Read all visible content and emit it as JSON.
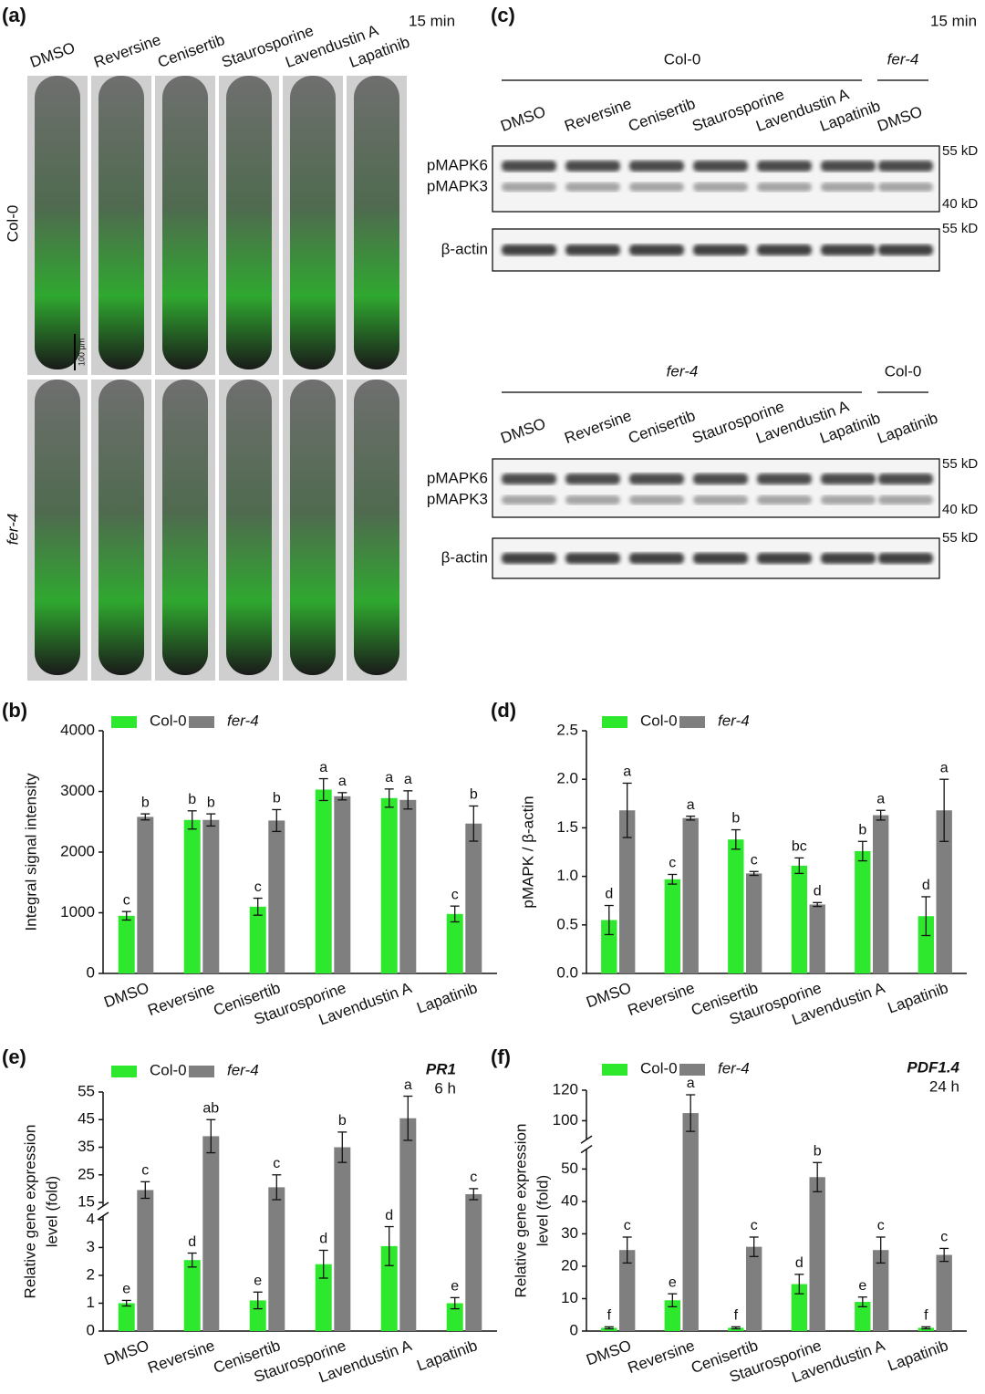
{
  "panel_a": {
    "label": "(a)",
    "time": "15 min",
    "treatments": [
      "DMSO",
      "Reversine",
      "Cenisertib",
      "Staurosporine",
      "Lavendustin A",
      "Lapatinib"
    ],
    "rows": [
      "Col-0",
      "fer-4"
    ],
    "scale_bar": "100 μm"
  },
  "panel_c": {
    "label": "(c)",
    "time": "15 min",
    "blots": [
      {
        "groups": [
          "Col-0",
          "fer-4"
        ],
        "lanes": [
          "DMSO",
          "Reversine",
          "Cenisertib",
          "Staurosporine",
          "Lavendustin A",
          "Lapatinib",
          "DMSO"
        ],
        "bands": [
          "pMAPK6",
          "pMAPK3",
          "β-actin"
        ],
        "markers": [
          "55 kD",
          "40 kD",
          "55 kD"
        ]
      },
      {
        "groups": [
          "fer-4",
          "Col-0"
        ],
        "lanes": [
          "DMSO",
          "Reversine",
          "Cenisertib",
          "Staurosporine",
          "Lavendustin A",
          "Lapatinib",
          "Lapatinib"
        ],
        "bands": [
          "pMAPK6",
          "pMAPK3",
          "β-actin"
        ],
        "markers": [
          "55 kD",
          "40 kD",
          "55 kD"
        ]
      }
    ]
  },
  "chart_data": [
    {
      "type": "bar",
      "panel": "(b)",
      "ylabel": [
        "Integral  signal intensity"
      ],
      "categories": [
        "DMSO",
        "Reversine",
        "Cenisertib",
        "Staurosporine",
        "Lavendustin A",
        "Lapatinib"
      ],
      "ylim": [
        0,
        4000
      ],
      "yticks": [
        0,
        1000,
        2000,
        3000,
        4000
      ],
      "series": [
        {
          "name": "Col-0",
          "color": "#2ee82e",
          "font_style": "normal",
          "values": [
            950,
            2530,
            1100,
            3030,
            2890,
            980
          ],
          "errors": [
            70,
            150,
            140,
            180,
            150,
            130
          ],
          "letters": [
            "c",
            "b",
            "c",
            "a",
            "a",
            "c"
          ]
        },
        {
          "name": "fer-4",
          "color": "#7f7f7f",
          "font_style": "italic",
          "values": [
            2580,
            2530,
            2520,
            2920,
            2860,
            2470
          ],
          "errors": [
            50,
            100,
            180,
            60,
            150,
            290
          ],
          "letters": [
            "b",
            "b",
            "b",
            "a",
            "a",
            "b"
          ]
        }
      ]
    },
    {
      "type": "bar",
      "panel": "(d)",
      "ylabel": [
        "pMAPK / β-actin"
      ],
      "categories": [
        "DMSO",
        "Reversine",
        "Cenisertib",
        "Staurosporine",
        "Lavendustin A",
        "Lapatinib"
      ],
      "ylim": [
        0,
        2.5
      ],
      "yticks": [
        {
          "value": 0,
          "label": "0.0"
        },
        0.5,
        {
          "value": 1,
          "label": "1.0"
        },
        1.5,
        {
          "value": 2,
          "label": "2.0"
        },
        2.5
      ],
      "series": [
        {
          "name": "Col-0",
          "color": "#2ee82e",
          "font_style": "normal",
          "values": [
            0.55,
            0.97,
            1.38,
            1.11,
            1.26,
            0.59
          ],
          "errors": [
            0.15,
            0.05,
            0.1,
            0.08,
            0.1,
            0.2
          ],
          "letters": [
            "d",
            "c",
            "b",
            "bc",
            "b",
            "d"
          ]
        },
        {
          "name": "fer-4",
          "color": "#7f7f7f",
          "font_style": "italic",
          "values": [
            1.68,
            1.6,
            1.03,
            0.71,
            1.63,
            1.68
          ],
          "errors": [
            0.28,
            0.02,
            0.02,
            0.02,
            0.05,
            0.32
          ],
          "letters": [
            "a",
            "a",
            "c",
            "d",
            "a",
            "a"
          ]
        }
      ]
    },
    {
      "type": "bar",
      "panel": "(e)",
      "ylabel": [
        "Relative gene expression",
        "level (fold)"
      ],
      "annotation": [
        "PR1",
        "6 h"
      ],
      "categories": [
        "DMSO",
        "Reversine",
        "Cenisertib",
        "Staurosporine",
        "Lavendustin A",
        "Lapatinib"
      ],
      "ylim": [
        0,
        55
      ],
      "axis_break": [
        4,
        15
      ],
      "yticks": [
        0,
        1,
        2,
        3,
        4,
        15,
        25,
        35,
        45,
        55
      ],
      "series": [
        {
          "name": "Col-0",
          "color": "#2ee82e",
          "font_style": "normal",
          "values": [
            1.0,
            2.55,
            1.1,
            2.4,
            3.05,
            1.0
          ],
          "errors": [
            0.1,
            0.25,
            0.3,
            0.5,
            0.7,
            0.2
          ],
          "letters": [
            "e",
            "d",
            "e",
            "d",
            "d",
            "e"
          ]
        },
        {
          "name": "fer-4",
          "color": "#7f7f7f",
          "font_style": "italic",
          "values": [
            19.5,
            39,
            20.5,
            35,
            45.5,
            18
          ],
          "errors": [
            3,
            6,
            4.5,
            5.5,
            8,
            2
          ],
          "letters": [
            "c",
            "ab",
            "c",
            "b",
            "a",
            "c"
          ]
        }
      ]
    },
    {
      "type": "bar",
      "panel": "(f)",
      "ylabel": [
        "Relative gene expression",
        "level (fold)"
      ],
      "annotation": [
        "PDF1.4",
        "24 h"
      ],
      "categories": [
        "DMSO",
        "Reversine",
        "Cenisertib",
        "Staurosporine",
        "Lavendustin A",
        "Lapatinib"
      ],
      "ylim": [
        0,
        120
      ],
      "axis_break": [
        55,
        90
      ],
      "yticks": [
        0,
        10,
        20,
        30,
        40,
        50,
        100,
        120
      ],
      "series": [
        {
          "name": "Col-0",
          "color": "#2ee82e",
          "font_style": "normal",
          "values": [
            1,
            9.5,
            1,
            14.5,
            9,
            1
          ],
          "errors": [
            0.3,
            2,
            0.3,
            3,
            1.5,
            0.3
          ],
          "letters": [
            "f",
            "e",
            "f",
            "d",
            "e",
            "f"
          ]
        },
        {
          "name": "fer-4",
          "color": "#7f7f7f",
          "font_style": "italic",
          "values": [
            25,
            105,
            26,
            47.5,
            25,
            23.5
          ],
          "errors": [
            4,
            12,
            3,
            4.5,
            4,
            2
          ],
          "letters": [
            "c",
            "a",
            "c",
            "b",
            "c",
            "c"
          ]
        }
      ]
    }
  ]
}
